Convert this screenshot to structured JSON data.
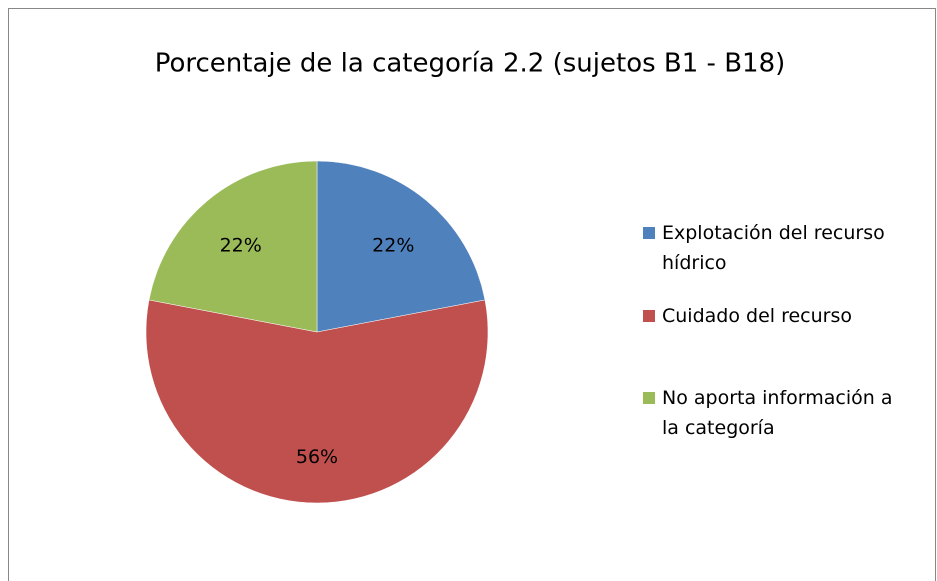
{
  "chart_data": {
    "type": "pie",
    "title": "Porcentaje de la categoría 2.2 (sujetos B1 - B18)",
    "categories": [
      "Explotación del recurso hídrico",
      "Cuidado del recurso",
      "No aporta información a la categoría"
    ],
    "values": [
      22,
      56,
      22
    ],
    "value_labels": [
      "22%",
      "56%",
      "22%"
    ],
    "colors": [
      "#4f81bd",
      "#c0504d",
      "#9bbb59"
    ],
    "legend": "right"
  }
}
